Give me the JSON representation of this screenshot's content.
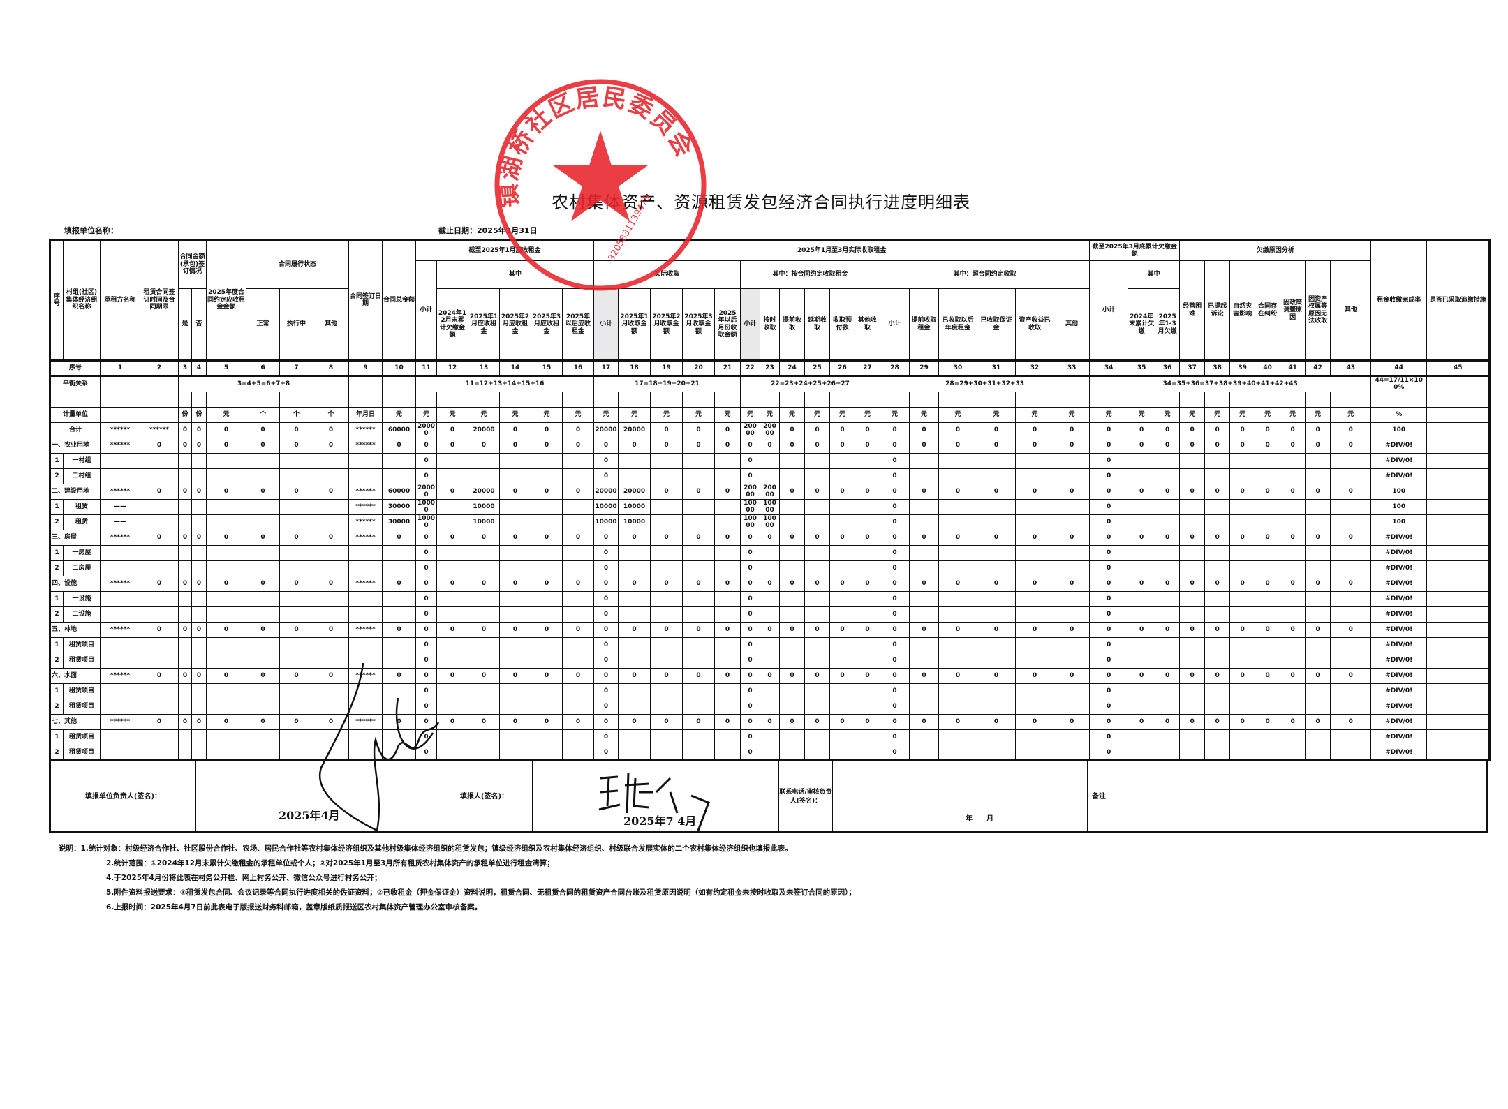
{
  "document": {
    "title": "农村集体资产、资源租赁发包经济合同执行进度明细表",
    "unit_label": "填报单位名称：",
    "cutoff_label": "截止日期：2025年3月31日"
  },
  "stamp": {
    "text": "镇湖桥社区居民委员会",
    "code": "3205831139479",
    "color": "#e8242b"
  },
  "header": {
    "labels": [
      "序号",
      "村组(社区)集体经济组织名称",
      "承租方名称",
      "租赁合同签订时间及合同期限",
      "合同金额(承包)签订情况",
      "2025年度合同约定应收租金金额",
      "合同履行状态",
      "合同签订日期",
      "合同总金额",
      "截至2025年1月应收租金",
      "2025年1月至3月实际收取租金",
      "截至2025年3月底累计欠缴金额",
      "欠缴原因分析",
      "租金收缴完成率",
      "是否已采取追缴措施",
      "小计",
      "其中",
      "实际收取",
      "其中：按合同约定收取租金",
      "其中：超合同约定收取",
      "小计",
      "其中",
      "经营困难",
      "已提起诉讼",
      "自然灾害影响",
      "合同存在纠纷",
      "因政策调整原因",
      "因资产权属等原因无法收取",
      "其他",
      "是",
      "否",
      "正常",
      "执行中",
      "其他",
      "2024年12月末累计欠缴金额",
      "2025年1月应收租金",
      "2025年2月应收租金",
      "2025年3月应收租金",
      "2025年以后应收租金",
      "小计",
      "2025年1月收取金额",
      "2025年2月收取金额",
      "2025年3月收取金额",
      "2025年以后月份收取金额",
      "小计",
      "按时收取",
      "提前收取",
      "延期收取",
      "收取预付款",
      "其他收取",
      "小计",
      "提前收取租金",
      "已收取以后年度租金",
      "已收取保证金",
      "资产收益已收取",
      "其他",
      "2024年末累计欠缴",
      "2025年1-3月欠缴"
    ],
    "index_label": "序号",
    "indices": [
      "1",
      "2",
      "3",
      "4",
      "5",
      "6",
      "7",
      "8",
      "9",
      "10",
      "11",
      "12",
      "13",
      "14",
      "15",
      "16",
      "17",
      "18",
      "19",
      "20",
      "21",
      "22",
      "23",
      "24",
      "25",
      "26",
      "27",
      "28",
      "29",
      "30",
      "31",
      "32",
      "33",
      "34",
      "35",
      "36",
      "37",
      "38",
      "39",
      "40",
      "41",
      "42",
      "43",
      "44",
      "45"
    ],
    "balance_label": "平衡关系",
    "balance": [
      "3=4+5=6+7+8",
      "11=12+13+14+15+16",
      "17=18+19+20+21",
      "22=23+24+25+26+27",
      "28=29+30+31+32+33",
      "34=35+36=37+38+39+40+41+42+43",
      "44=17/11×100%"
    ],
    "unit_row_label": "计量单位",
    "units": [
      "",
      "",
      "份",
      "份",
      "元",
      "个",
      "个",
      "个",
      "年月日",
      "元",
      "元",
      "元",
      "元",
      "元",
      "元",
      "元",
      "元",
      "元",
      "元",
      "元",
      "元",
      "元",
      "元",
      "元",
      "元",
      "元",
      "元",
      "元",
      "元",
      "元",
      "元",
      "元",
      "元",
      "元",
      "元",
      "元",
      "元",
      "元",
      "元",
      "元",
      "元",
      "元",
      "元",
      "%",
      ""
    ]
  },
  "rows": [
    {
      "no": "",
      "name": "合计",
      "cells": [
        "******",
        "******",
        "0",
        "0",
        "0",
        "0",
        "0",
        "0",
        "******",
        "60000",
        "20000",
        "0",
        "20000",
        "0",
        "0",
        "0",
        "20000",
        "20000",
        "0",
        "0",
        "0",
        "20000",
        "20000",
        "0",
        "0",
        "0",
        "0",
        "0",
        "0",
        "0",
        "0",
        "0",
        "0",
        "0",
        "0",
        "0",
        "0",
        "0",
        "0",
        "0",
        "0",
        "0",
        "0",
        "100",
        ""
      ]
    },
    {
      "no": "",
      "name": "一、农业用地",
      "cells": [
        "******",
        "0",
        "0",
        "0",
        "0",
        "0",
        "0",
        "0",
        "******",
        "0",
        "0",
        "0",
        "0",
        "0",
        "0",
        "0",
        "0",
        "0",
        "0",
        "0",
        "0",
        "0",
        "0",
        "0",
        "0",
        "0",
        "0",
        "0",
        "0",
        "0",
        "0",
        "0",
        "0",
        "0",
        "0",
        "0",
        "0",
        "0",
        "0",
        "0",
        "0",
        "0",
        "0",
        "#DIV/0!",
        ""
      ]
    },
    {
      "no": "1",
      "name": "一村组",
      "cells": [
        "",
        "",
        "",
        "",
        "",
        "",
        "",
        "",
        "",
        "",
        "0",
        "",
        "",
        "",
        "",
        "",
        "0",
        "",
        "",
        "",
        "",
        "0",
        "",
        "",
        "",
        "",
        "",
        "0",
        "",
        "",
        "",
        "",
        "",
        "0",
        "",
        "",
        "",
        "",
        "",
        "",
        "",
        "",
        "",
        "#DIV/0!",
        ""
      ]
    },
    {
      "no": "2",
      "name": "二村组",
      "cells": [
        "",
        "",
        "",
        "",
        "",
        "",
        "",
        "",
        "",
        "",
        "0",
        "",
        "",
        "",
        "",
        "",
        "0",
        "",
        "",
        "",
        "",
        "0",
        "",
        "",
        "",
        "",
        "",
        "0",
        "",
        "",
        "",
        "",
        "",
        "0",
        "",
        "",
        "",
        "",
        "",
        "",
        "",
        "",
        "",
        "#DIV/0!",
        ""
      ]
    },
    {
      "no": "",
      "name": "二、建设用地",
      "cells": [
        "******",
        "0",
        "0",
        "0",
        "0",
        "0",
        "0",
        "0",
        "******",
        "60000",
        "20000",
        "0",
        "20000",
        "0",
        "0",
        "0",
        "20000",
        "20000",
        "0",
        "0",
        "0",
        "20000",
        "20000",
        "0",
        "0",
        "0",
        "0",
        "0",
        "0",
        "0",
        "0",
        "0",
        "0",
        "0",
        "0",
        "0",
        "0",
        "0",
        "0",
        "0",
        "0",
        "0",
        "0",
        "100",
        ""
      ]
    },
    {
      "no": "1",
      "name": "租赁",
      "cells": [
        "——",
        "",
        "",
        "",
        "",
        "",
        "",
        "",
        "******",
        "30000",
        "10000",
        "",
        "10000",
        "",
        "",
        "",
        "10000",
        "10000",
        "",
        "",
        "",
        "10000",
        "10000",
        "",
        "",
        "",
        "",
        "0",
        "",
        "",
        "",
        "",
        "",
        "0",
        "",
        "",
        "",
        "",
        "",
        "",
        "",
        "",
        "",
        "100",
        ""
      ]
    },
    {
      "no": "2",
      "name": "租赁",
      "cells": [
        "——",
        "",
        "",
        "",
        "",
        "",
        "",
        "",
        "******",
        "30000",
        "10000",
        "",
        "10000",
        "",
        "",
        "",
        "10000",
        "10000",
        "",
        "",
        "",
        "10000",
        "10000",
        "",
        "",
        "",
        "",
        "0",
        "",
        "",
        "",
        "",
        "",
        "0",
        "",
        "",
        "",
        "",
        "",
        "",
        "",
        "",
        "",
        "100",
        ""
      ]
    },
    {
      "no": "",
      "name": "三、房屋",
      "cells": [
        "******",
        "0",
        "0",
        "0",
        "0",
        "0",
        "0",
        "0",
        "******",
        "0",
        "0",
        "0",
        "0",
        "0",
        "0",
        "0",
        "0",
        "0",
        "0",
        "0",
        "0",
        "0",
        "0",
        "0",
        "0",
        "0",
        "0",
        "0",
        "0",
        "0",
        "0",
        "0",
        "0",
        "0",
        "0",
        "0",
        "0",
        "0",
        "0",
        "0",
        "0",
        "0",
        "0",
        "#DIV/0!",
        ""
      ]
    },
    {
      "no": "1",
      "name": "一房屋",
      "cells": [
        "",
        "",
        "",
        "",
        "",
        "",
        "",
        "",
        "",
        "",
        "0",
        "",
        "",
        "",
        "",
        "",
        "0",
        "",
        "",
        "",
        "",
        "0",
        "",
        "",
        "",
        "",
        "",
        "0",
        "",
        "",
        "",
        "",
        "",
        "0",
        "",
        "",
        "",
        "",
        "",
        "",
        "",
        "",
        "",
        "#DIV/0!",
        ""
      ]
    },
    {
      "no": "2",
      "name": "二房屋",
      "cells": [
        "",
        "",
        "",
        "",
        "",
        "",
        "",
        "",
        "",
        "",
        "0",
        "",
        "",
        "",
        "",
        "",
        "0",
        "",
        "",
        "",
        "",
        "0",
        "",
        "",
        "",
        "",
        "",
        "0",
        "",
        "",
        "",
        "",
        "",
        "0",
        "",
        "",
        "",
        "",
        "",
        "",
        "",
        "",
        "",
        "#DIV/0!",
        ""
      ]
    },
    {
      "no": "",
      "name": "四、设施",
      "cells": [
        "******",
        "0",
        "0",
        "0",
        "0",
        "0",
        "0",
        "0",
        "******",
        "0",
        "0",
        "0",
        "0",
        "0",
        "0",
        "0",
        "0",
        "0",
        "0",
        "0",
        "0",
        "0",
        "0",
        "0",
        "0",
        "0",
        "0",
        "0",
        "0",
        "0",
        "0",
        "0",
        "0",
        "0",
        "0",
        "0",
        "0",
        "0",
        "0",
        "0",
        "0",
        "0",
        "0",
        "#DIV/0!",
        ""
      ]
    },
    {
      "no": "1",
      "name": "一设施",
      "cells": [
        "",
        "",
        "",
        "",
        "",
        "",
        "",
        "",
        "",
        "",
        "0",
        "",
        "",
        "",
        "",
        "",
        "0",
        "",
        "",
        "",
        "",
        "0",
        "",
        "",
        "",
        "",
        "",
        "0",
        "",
        "",
        "",
        "",
        "",
        "0",
        "",
        "",
        "",
        "",
        "",
        "",
        "",
        "",
        "",
        "#DIV/0!",
        ""
      ]
    },
    {
      "no": "2",
      "name": "二设施",
      "cells": [
        "",
        "",
        "",
        "",
        "",
        "",
        "",
        "",
        "",
        "",
        "0",
        "",
        "",
        "",
        "",
        "",
        "0",
        "",
        "",
        "",
        "",
        "0",
        "",
        "",
        "",
        "",
        "",
        "0",
        "",
        "",
        "",
        "",
        "",
        "0",
        "",
        "",
        "",
        "",
        "",
        "",
        "",
        "",
        "",
        "#DIV/0!",
        ""
      ]
    },
    {
      "no": "",
      "name": "五、林地",
      "cells": [
        "******",
        "0",
        "0",
        "0",
        "0",
        "0",
        "0",
        "0",
        "******",
        "0",
        "0",
        "0",
        "0",
        "0",
        "0",
        "0",
        "0",
        "0",
        "0",
        "0",
        "0",
        "0",
        "0",
        "0",
        "0",
        "0",
        "0",
        "0",
        "0",
        "0",
        "0",
        "0",
        "0",
        "0",
        "0",
        "0",
        "0",
        "0",
        "0",
        "0",
        "0",
        "0",
        "0",
        "#DIV/0!",
        ""
      ]
    },
    {
      "no": "1",
      "name": "租赁项目",
      "cells": [
        "",
        "",
        "",
        "",
        "",
        "",
        "",
        "",
        "",
        "",
        "0",
        "",
        "",
        "",
        "",
        "",
        "0",
        "",
        "",
        "",
        "",
        "0",
        "",
        "",
        "",
        "",
        "",
        "0",
        "",
        "",
        "",
        "",
        "",
        "0",
        "",
        "",
        "",
        "",
        "",
        "",
        "",
        "",
        "",
        "#DIV/0!",
        ""
      ]
    },
    {
      "no": "2",
      "name": "租赁项目",
      "cells": [
        "",
        "",
        "",
        "",
        "",
        "",
        "",
        "",
        "",
        "",
        "0",
        "",
        "",
        "",
        "",
        "",
        "0",
        "",
        "",
        "",
        "",
        "0",
        "",
        "",
        "",
        "",
        "",
        "0",
        "",
        "",
        "",
        "",
        "",
        "0",
        "",
        "",
        "",
        "",
        "",
        "",
        "",
        "",
        "",
        "#DIV/0!",
        ""
      ]
    },
    {
      "no": "",
      "name": "六、水面",
      "cells": [
        "******",
        "0",
        "0",
        "0",
        "0",
        "0",
        "0",
        "0",
        "******",
        "0",
        "0",
        "0",
        "0",
        "0",
        "0",
        "0",
        "0",
        "0",
        "0",
        "0",
        "0",
        "0",
        "0",
        "0",
        "0",
        "0",
        "0",
        "0",
        "0",
        "0",
        "0",
        "0",
        "0",
        "0",
        "0",
        "0",
        "0",
        "0",
        "0",
        "0",
        "0",
        "0",
        "0",
        "#DIV/0!",
        ""
      ]
    },
    {
      "no": "1",
      "name": "租赁项目",
      "cells": [
        "",
        "",
        "",
        "",
        "",
        "",
        "",
        "",
        "",
        "",
        "0",
        "",
        "",
        "",
        "",
        "",
        "0",
        "",
        "",
        "",
        "",
        "0",
        "",
        "",
        "",
        "",
        "",
        "0",
        "",
        "",
        "",
        "",
        "",
        "0",
        "",
        "",
        "",
        "",
        "",
        "",
        "",
        "",
        "",
        "#DIV/0!",
        ""
      ]
    },
    {
      "no": "2",
      "name": "租赁项目",
      "cells": [
        "",
        "",
        "",
        "",
        "",
        "",
        "",
        "",
        "",
        "",
        "0",
        "",
        "",
        "",
        "",
        "",
        "0",
        "",
        "",
        "",
        "",
        "0",
        "",
        "",
        "",
        "",
        "",
        "0",
        "",
        "",
        "",
        "",
        "",
        "0",
        "",
        "",
        "",
        "",
        "",
        "",
        "",
        "",
        "",
        "#DIV/0!",
        ""
      ]
    },
    {
      "no": "",
      "name": "七、其他",
      "cells": [
        "******",
        "0",
        "0",
        "0",
        "0",
        "0",
        "0",
        "0",
        "******",
        "0",
        "0",
        "0",
        "0",
        "0",
        "0",
        "0",
        "0",
        "0",
        "0",
        "0",
        "0",
        "0",
        "0",
        "0",
        "0",
        "0",
        "0",
        "0",
        "0",
        "0",
        "0",
        "0",
        "0",
        "0",
        "0",
        "0",
        "0",
        "0",
        "0",
        "0",
        "0",
        "0",
        "0",
        "#DIV/0!",
        ""
      ]
    },
    {
      "no": "1",
      "name": "租赁项目",
      "cells": [
        "",
        "",
        "",
        "",
        "",
        "",
        "",
        "",
        "",
        "",
        "0",
        "",
        "",
        "",
        "",
        "",
        "0",
        "",
        "",
        "",
        "",
        "0",
        "",
        "",
        "",
        "",
        "",
        "0",
        "",
        "",
        "",
        "",
        "",
        "0",
        "",
        "",
        "",
        "",
        "",
        "",
        "",
        "",
        "",
        "#DIV/0!",
        ""
      ]
    },
    {
      "no": "2",
      "name": "租赁项目",
      "cells": [
        "",
        "",
        "",
        "",
        "",
        "",
        "",
        "",
        "",
        "",
        "0",
        "",
        "",
        "",
        "",
        "",
        "0",
        "",
        "",
        "",
        "",
        "0",
        "",
        "",
        "",
        "",
        "",
        "0",
        "",
        "",
        "",
        "",
        "",
        "0",
        "",
        "",
        "",
        "",
        "",
        "",
        "",
        "",
        "",
        "#DIV/0!",
        ""
      ]
    }
  ],
  "signature": {
    "head_label": "填报单位负责人(签名)：",
    "head_date": "2025年4月",
    "filler_label": "填报人(签名)：",
    "filler_date": "2025年7 4月",
    "phone_label": "联系电话/审核负责人(签名)：",
    "phone_date": "年　　月",
    "remark_label": "备注"
  },
  "notes": [
    "说明：1.统计对象：村级经济合作社、社区股份合作社、农场、居民合作社等农村集体经济组织及其他村级集体经济组织的租赁发包；镇级经济组织及农村集体经济组织、村级联合发展实体的二个农村集体经济组织也填报此表。",
    "2.统计范围：①2024年12月末累计欠缴租金的承租单位或个人；②对2025年1月至3月所有租赁农村集体资产的承租单位进行租金清算；",
    "4.于2025年4月份将此表在村务公开栏、网上村务公开、微信公众号进行村务公开；",
    "5.附件资料报送要求：①租赁发包合同、会议记录等合同执行进度相关的佐证资料；②已收租金（押金保证金）资料说明，租赁合同、无租赁合同的租赁资产合同台账及租赁原因说明（如有约定租金未按时收取及未签订合同的原因）；",
    "6.上报时间：2025年4月7日前此表电子版报送财务科邮箱，盖章版纸质报送区农村集体资产管理办公室审核备案。"
  ]
}
